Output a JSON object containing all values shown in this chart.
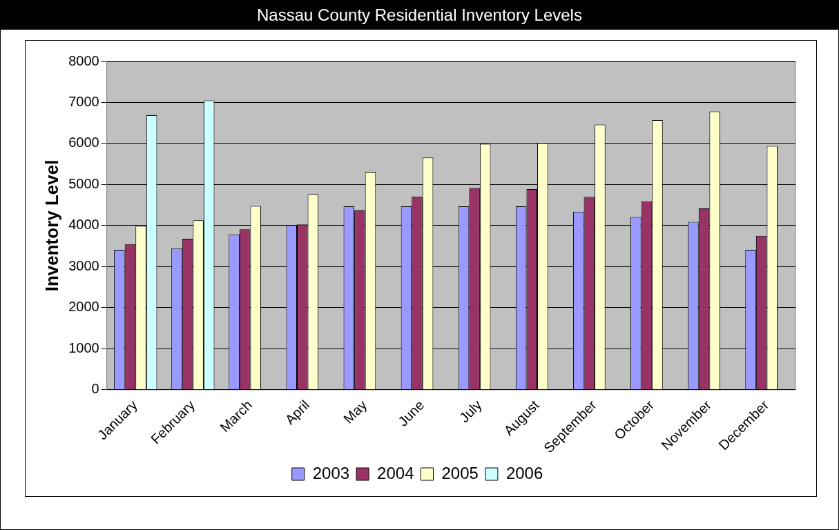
{
  "chart_data": {
    "type": "bar",
    "title": "Nassau County Residential Inventory Levels",
    "ylabel": "Inventory Level",
    "categories": [
      "January",
      "February",
      "March",
      "April",
      "May",
      "June",
      "July",
      "August",
      "September",
      "October",
      "November",
      "December"
    ],
    "series": [
      {
        "name": "2003",
        "color": "#9999ff",
        "values": [
          3410,
          3450,
          3790,
          4010,
          4470,
          4470,
          4470,
          4470,
          4340,
          4210,
          4090,
          3410
        ]
      },
      {
        "name": "2004",
        "color": "#993366",
        "values": [
          3550,
          3680,
          3910,
          4030,
          4370,
          4710,
          4920,
          4890,
          4700,
          4590,
          4420,
          3750
        ]
      },
      {
        "name": "2005",
        "color": "#ffffcc",
        "values": [
          3990,
          4130,
          4480,
          4770,
          5310,
          5660,
          5990,
          6010,
          6460,
          6570,
          6780,
          5940
        ]
      },
      {
        "name": "2006",
        "color": "#ccffff",
        "values": [
          6690,
          7050,
          null,
          null,
          null,
          null,
          null,
          null,
          null,
          null,
          null,
          null
        ]
      }
    ],
    "ylim": [
      0,
      8000
    ],
    "yticks": [
      0,
      1000,
      2000,
      3000,
      4000,
      5000,
      6000,
      7000,
      8000
    ],
    "grid": "y",
    "legend": "bottom"
  }
}
